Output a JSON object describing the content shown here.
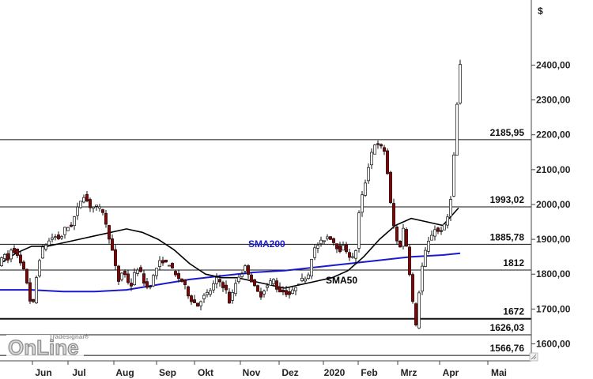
{
  "chart_data": {
    "type": "candlestick",
    "currency_label": "$",
    "ylim": [
      1560,
      2470
    ],
    "y_ticks": [
      "1600,00",
      "1700,00",
      "1800,00",
      "1900,00",
      "2000,00",
      "2100,00",
      "2200,00",
      "2300,00",
      "2400,00"
    ],
    "y_tick_values": [
      1600,
      1700,
      1800,
      1900,
      2000,
      2100,
      2200,
      2300,
      2400
    ],
    "x_ticks": [
      "Jun",
      "Jul",
      "Aug",
      "Sep",
      "Okt",
      "Nov",
      "Dez",
      "2020",
      "Feb",
      "Mrz",
      "Apr",
      "Mai"
    ],
    "levels": [
      {
        "label": "2185,95",
        "value": 2185.95
      },
      {
        "label": "1993,02",
        "value": 1993.02
      },
      {
        "label": "1885,78",
        "value": 1885.78
      },
      {
        "label": "1812",
        "value": 1812
      },
      {
        "label": "1672",
        "value": 1672
      },
      {
        "label": "1626,03",
        "value": 1626.03
      },
      {
        "label": "1566,76",
        "value": 1566.76
      }
    ],
    "annotations": [
      {
        "label": "SMA200",
        "color": "#1a1acc"
      },
      {
        "label": "SMA50",
        "color": "#000000"
      }
    ],
    "price_path": [
      {
        "x": 0,
        "y": 1830
      },
      {
        "x": 5,
        "y": 1860
      },
      {
        "x": 10,
        "y": 1840
      },
      {
        "x": 15,
        "y": 1880
      },
      {
        "x": 22,
        "y": 1850
      },
      {
        "x": 30,
        "y": 1810
      },
      {
        "x": 36,
        "y": 1760
      },
      {
        "x": 40,
        "y": 1690
      },
      {
        "x": 43,
        "y": 1730
      },
      {
        "x": 48,
        "y": 1830
      },
      {
        "x": 55,
        "y": 1880
      },
      {
        "x": 60,
        "y": 1890
      },
      {
        "x": 68,
        "y": 1910
      },
      {
        "x": 76,
        "y": 1900
      },
      {
        "x": 82,
        "y": 1930
      },
      {
        "x": 90,
        "y": 1940
      },
      {
        "x": 95,
        "y": 1970
      },
      {
        "x": 100,
        "y": 2000
      },
      {
        "x": 105,
        "y": 2030
      },
      {
        "x": 110,
        "y": 2010
      },
      {
        "x": 115,
        "y": 1990
      },
      {
        "x": 120,
        "y": 1995
      },
      {
        "x": 125,
        "y": 1990
      },
      {
        "x": 130,
        "y": 1980
      },
      {
        "x": 135,
        "y": 1930
      },
      {
        "x": 140,
        "y": 1890
      },
      {
        "x": 145,
        "y": 1830
      },
      {
        "x": 150,
        "y": 1780
      },
      {
        "x": 155,
        "y": 1810
      },
      {
        "x": 160,
        "y": 1790
      },
      {
        "x": 165,
        "y": 1760
      },
      {
        "x": 170,
        "y": 1800
      },
      {
        "x": 175,
        "y": 1820
      },
      {
        "x": 180,
        "y": 1790
      },
      {
        "x": 185,
        "y": 1760
      },
      {
        "x": 190,
        "y": 1770
      },
      {
        "x": 195,
        "y": 1800
      },
      {
        "x": 200,
        "y": 1830
      },
      {
        "x": 205,
        "y": 1840
      },
      {
        "x": 210,
        "y": 1830
      },
      {
        "x": 215,
        "y": 1830
      },
      {
        "x": 220,
        "y": 1800
      },
      {
        "x": 225,
        "y": 1790
      },
      {
        "x": 230,
        "y": 1780
      },
      {
        "x": 235,
        "y": 1760
      },
      {
        "x": 240,
        "y": 1730
      },
      {
        "x": 245,
        "y": 1720
      },
      {
        "x": 250,
        "y": 1710
      },
      {
        "x": 255,
        "y": 1730
      },
      {
        "x": 260,
        "y": 1740
      },
      {
        "x": 265,
        "y": 1750
      },
      {
        "x": 270,
        "y": 1770
      },
      {
        "x": 275,
        "y": 1790
      },
      {
        "x": 280,
        "y": 1770
      },
      {
        "x": 285,
        "y": 1760
      },
      {
        "x": 290,
        "y": 1720
      },
      {
        "x": 295,
        "y": 1750
      },
      {
        "x": 300,
        "y": 1790
      },
      {
        "x": 305,
        "y": 1800
      },
      {
        "x": 310,
        "y": 1820
      },
      {
        "x": 315,
        "y": 1800
      },
      {
        "x": 320,
        "y": 1770
      },
      {
        "x": 325,
        "y": 1750
      },
      {
        "x": 330,
        "y": 1740
      },
      {
        "x": 335,
        "y": 1760
      },
      {
        "x": 340,
        "y": 1770
      },
      {
        "x": 345,
        "y": 1790
      },
      {
        "x": 350,
        "y": 1760
      },
      {
        "x": 355,
        "y": 1750
      },
      {
        "x": 360,
        "y": 1750
      },
      {
        "x": 365,
        "y": 1740
      },
      {
        "x": 370,
        "y": 1750
      },
      {
        "x": 375,
        "y": 1770
      },
      {
        "x": 380,
        "y": 1780
      },
      {
        "x": 385,
        "y": 1790
      },
      {
        "x": 390,
        "y": 1800
      },
      {
        "x": 395,
        "y": 1860
      },
      {
        "x": 400,
        "y": 1880
      },
      {
        "x": 405,
        "y": 1890
      },
      {
        "x": 410,
        "y": 1900
      },
      {
        "x": 415,
        "y": 1910
      },
      {
        "x": 420,
        "y": 1900
      },
      {
        "x": 425,
        "y": 1880
      },
      {
        "x": 430,
        "y": 1870
      },
      {
        "x": 435,
        "y": 1880
      },
      {
        "x": 440,
        "y": 1860
      },
      {
        "x": 445,
        "y": 1840
      },
      {
        "x": 450,
        "y": 1870
      },
      {
        "x": 455,
        "y": 2000
      },
      {
        "x": 460,
        "y": 2040
      },
      {
        "x": 465,
        "y": 2100
      },
      {
        "x": 470,
        "y": 2150
      },
      {
        "x": 475,
        "y": 2180
      },
      {
        "x": 480,
        "y": 2160
      },
      {
        "x": 485,
        "y": 2170
      },
      {
        "x": 490,
        "y": 2090
      },
      {
        "x": 495,
        "y": 1980
      },
      {
        "x": 500,
        "y": 1910
      },
      {
        "x": 505,
        "y": 1870
      },
      {
        "x": 510,
        "y": 1930
      },
      {
        "x": 515,
        "y": 1870
      },
      {
        "x": 520,
        "y": 1760
      },
      {
        "x": 523,
        "y": 1700
      },
      {
        "x": 526,
        "y": 1650
      },
      {
        "x": 530,
        "y": 1750
      },
      {
        "x": 535,
        "y": 1840
      },
      {
        "x": 540,
        "y": 1880
      },
      {
        "x": 545,
        "y": 1910
      },
      {
        "x": 550,
        "y": 1930
      },
      {
        "x": 555,
        "y": 1920
      },
      {
        "x": 560,
        "y": 1930
      },
      {
        "x": 565,
        "y": 1950
      },
      {
        "x": 570,
        "y": 2020
      },
      {
        "x": 573,
        "y": 2100
      },
      {
        "x": 576,
        "y": 2220
      },
      {
        "x": 579,
        "y": 2320
      },
      {
        "x": 582,
        "y": 2400
      }
    ],
    "sma50": [
      {
        "x": 0,
        "y": 1830
      },
      {
        "x": 20,
        "y": 1860
      },
      {
        "x": 40,
        "y": 1880
      },
      {
        "x": 60,
        "y": 1880
      },
      {
        "x": 80,
        "y": 1890
      },
      {
        "x": 100,
        "y": 1900
      },
      {
        "x": 120,
        "y": 1910
      },
      {
        "x": 140,
        "y": 1920
      },
      {
        "x": 160,
        "y": 1930
      },
      {
        "x": 180,
        "y": 1920
      },
      {
        "x": 200,
        "y": 1900
      },
      {
        "x": 220,
        "y": 1870
      },
      {
        "x": 240,
        "y": 1830
      },
      {
        "x": 260,
        "y": 1800
      },
      {
        "x": 280,
        "y": 1790
      },
      {
        "x": 300,
        "y": 1790
      },
      {
        "x": 320,
        "y": 1780
      },
      {
        "x": 340,
        "y": 1770
      },
      {
        "x": 360,
        "y": 1760
      },
      {
        "x": 380,
        "y": 1770
      },
      {
        "x": 400,
        "y": 1780
      },
      {
        "x": 420,
        "y": 1790
      },
      {
        "x": 440,
        "y": 1810
      },
      {
        "x": 460,
        "y": 1850
      },
      {
        "x": 480,
        "y": 1900
      },
      {
        "x": 500,
        "y": 1940
      },
      {
        "x": 520,
        "y": 1960
      },
      {
        "x": 540,
        "y": 1950
      },
      {
        "x": 560,
        "y": 1940
      },
      {
        "x": 580,
        "y": 1990
      }
    ],
    "sma200": [
      {
        "x": 0,
        "y": 1755
      },
      {
        "x": 40,
        "y": 1755
      },
      {
        "x": 80,
        "y": 1750
      },
      {
        "x": 120,
        "y": 1750
      },
      {
        "x": 160,
        "y": 1755
      },
      {
        "x": 200,
        "y": 1770
      },
      {
        "x": 240,
        "y": 1785
      },
      {
        "x": 280,
        "y": 1795
      },
      {
        "x": 320,
        "y": 1805
      },
      {
        "x": 360,
        "y": 1810
      },
      {
        "x": 400,
        "y": 1820
      },
      {
        "x": 440,
        "y": 1830
      },
      {
        "x": 480,
        "y": 1840
      },
      {
        "x": 520,
        "y": 1850
      },
      {
        "x": 560,
        "y": 1855
      },
      {
        "x": 582,
        "y": 1860
      }
    ]
  },
  "logo": {
    "main": "OnLine",
    "sub": "Tradesignal®"
  }
}
